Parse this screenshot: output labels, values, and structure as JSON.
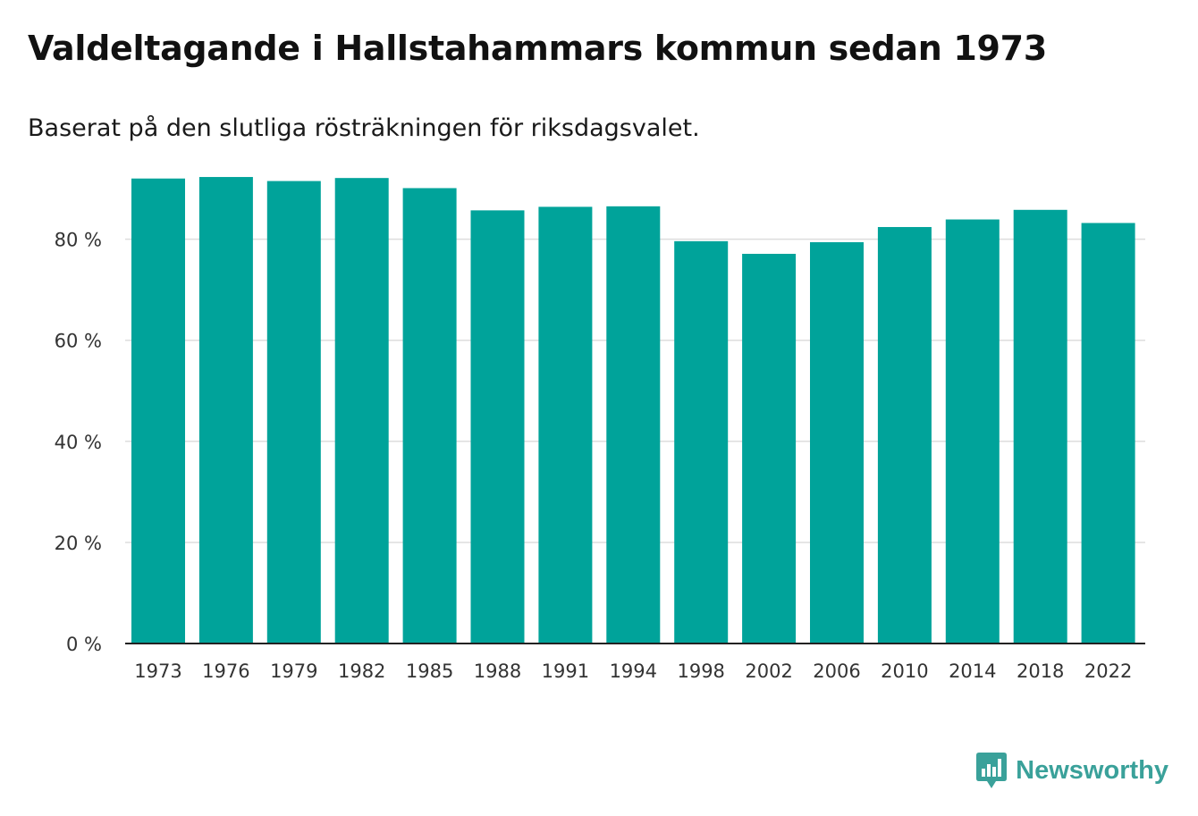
{
  "header": {
    "title": "Valdeltagande i Hallstahammars kommun sedan 1973",
    "subtitle": "Baserat på den slutliga rösträkningen för riksdagsvalet."
  },
  "brand": {
    "name": "Newsworthy",
    "icon": "newsworthy-logo-icon",
    "color": "#3aa19a"
  },
  "colors": {
    "bar": "#00a39a",
    "gridline": "#dddddd",
    "axis": "#222222",
    "tick_text": "#333333"
  },
  "chart_data": {
    "type": "bar",
    "title": "Valdeltagande i Hallstahammars kommun sedan 1973",
    "subtitle": "Baserat på den slutliga rösträkningen för riksdagsvalet.",
    "xlabel": "",
    "ylabel": "",
    "categories": [
      "1973",
      "1976",
      "1979",
      "1982",
      "1985",
      "1988",
      "1991",
      "1994",
      "1998",
      "2002",
      "2006",
      "2010",
      "2014",
      "2018",
      "2022"
    ],
    "values": [
      92.0,
      92.3,
      91.5,
      92.1,
      90.1,
      85.7,
      86.4,
      86.5,
      79.6,
      77.1,
      79.4,
      82.4,
      83.9,
      85.8,
      83.2
    ],
    "unit": "%",
    "ylim": [
      0,
      100
    ],
    "yticks": [
      0,
      20,
      40,
      60,
      80
    ],
    "ytick_labels": [
      "0 %",
      "20 %",
      "40 %",
      "60 %",
      "80 %"
    ],
    "grid": true,
    "legend": "none"
  }
}
